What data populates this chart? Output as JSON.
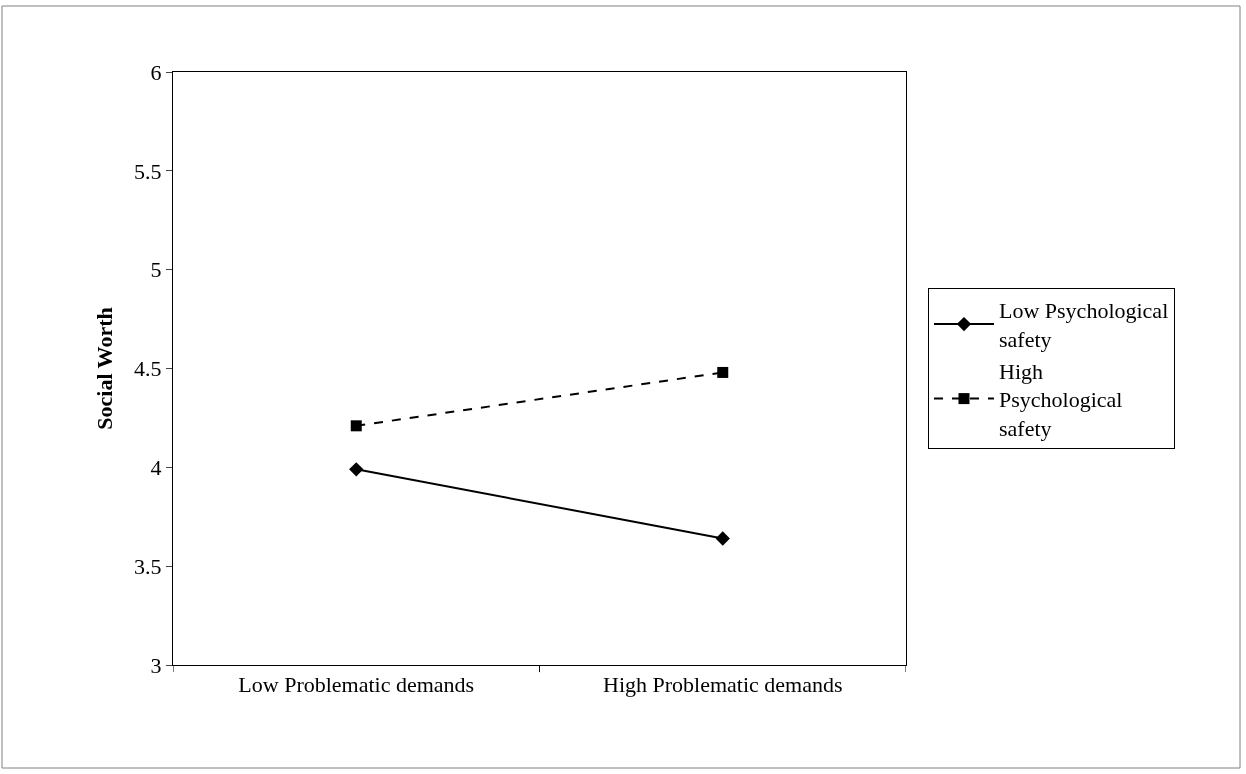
{
  "chart_data": {
    "type": "line",
    "ylabel": "Social Worth",
    "categories": [
      "Low Problematic demands",
      "High Problematic demands"
    ],
    "series": [
      {
        "name": "Low Psychological safety",
        "color": "#000000",
        "values": [
          3.99,
          3.64
        ],
        "marker": "diamond",
        "line_style": "solid"
      },
      {
        "name": "High Psychological safety",
        "color": "#000000",
        "values": [
          4.21,
          4.48
        ],
        "marker": "square",
        "line_style": "dashed"
      }
    ],
    "ylim": [
      3,
      6
    ],
    "yticks": [
      3,
      3.5,
      4,
      4.5,
      5,
      5.5,
      6
    ],
    "legend": "right"
  }
}
